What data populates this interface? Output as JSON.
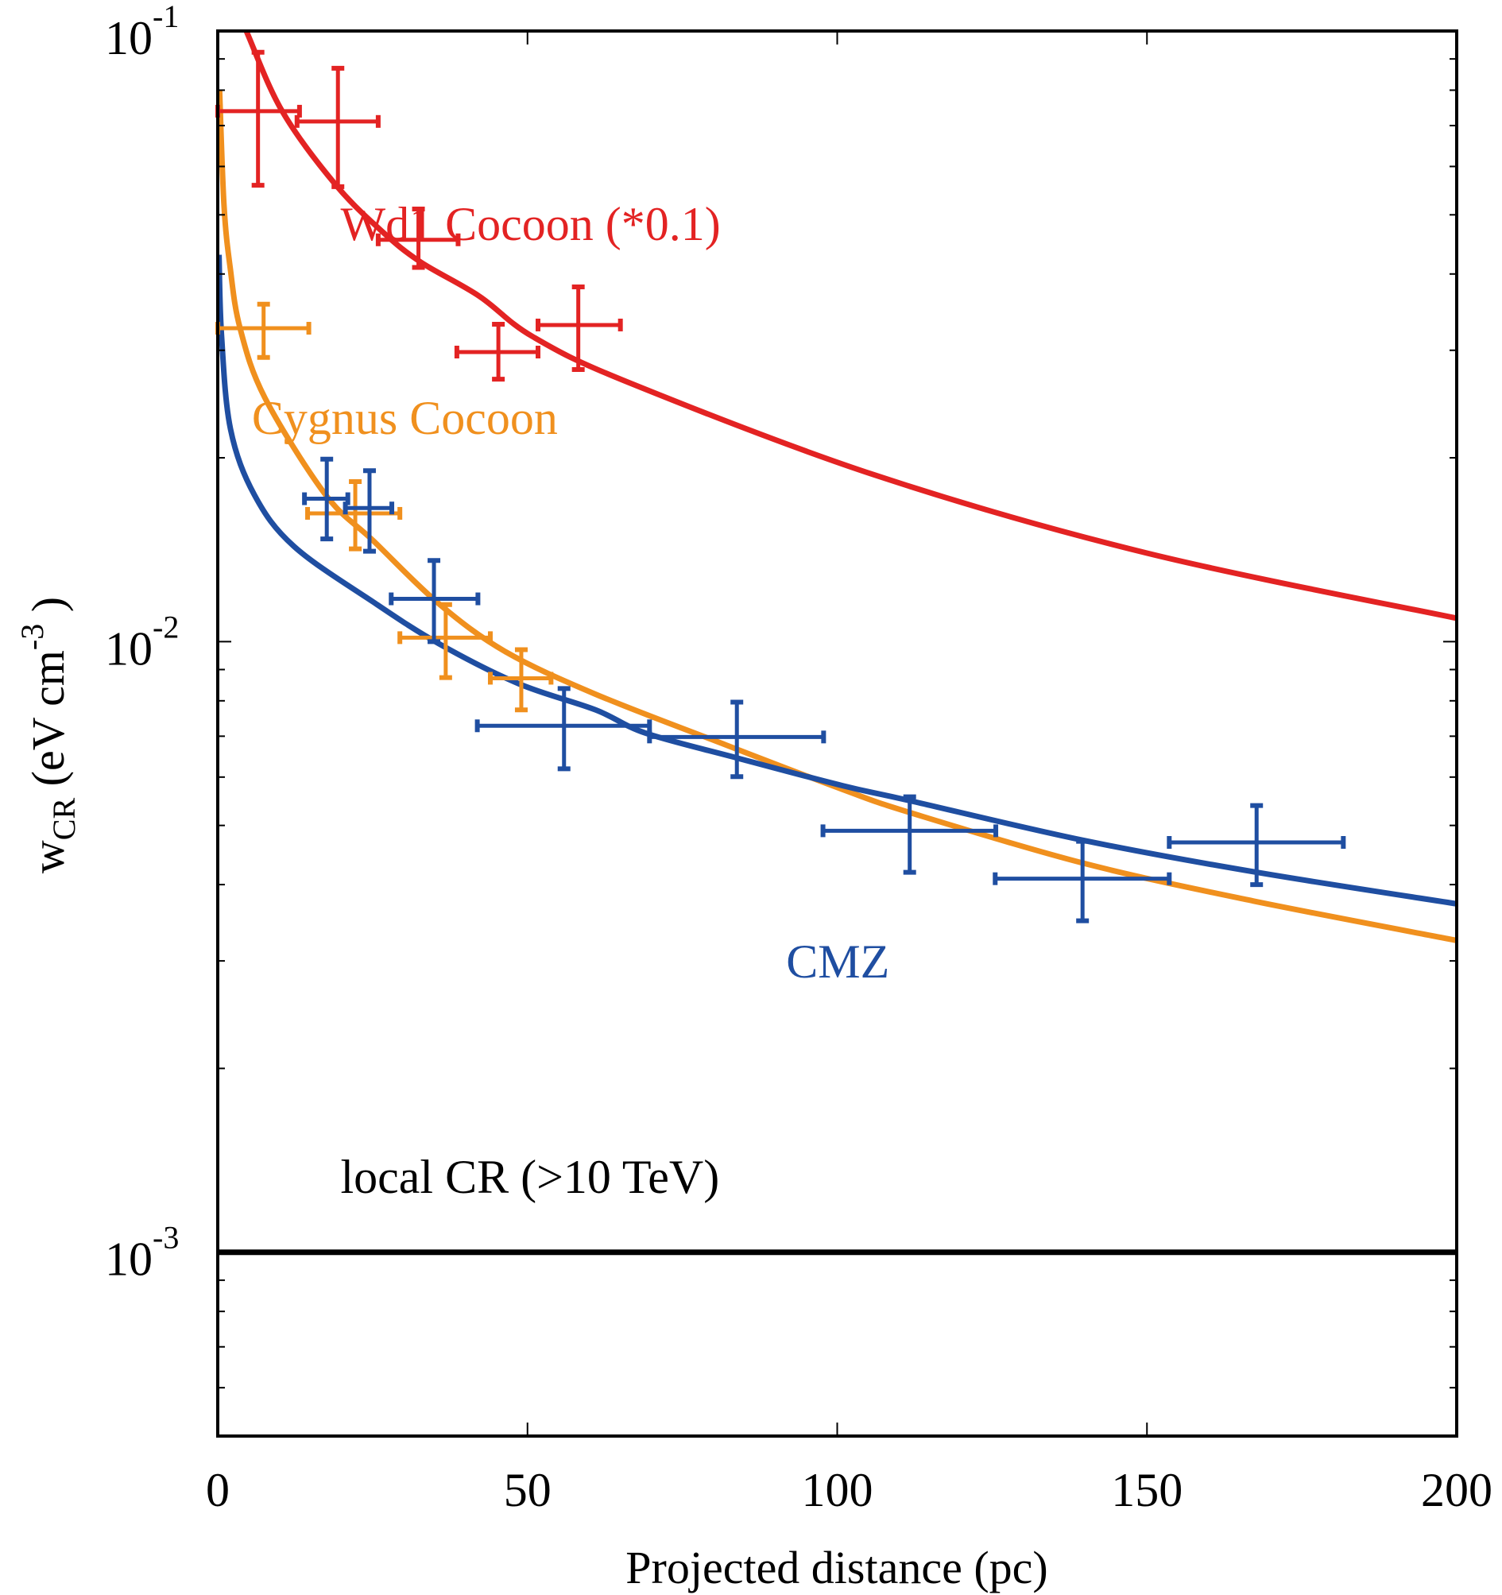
{
  "chart_data": {
    "type": "scatter",
    "title": "",
    "xlabel": "Projected distance (pc)",
    "ylabel": {
      "main": "w",
      "sub": "CR",
      "unit_open": " (eV cm",
      "unit_sup": "-3",
      "unit_close": " )"
    },
    "xlim": [
      0,
      200
    ],
    "ylim": [
      0.0005,
      0.1
    ],
    "yscale": "log",
    "grid": false,
    "legend": "none (inline labels)",
    "x_ticks": [
      {
        "value": 0,
        "label": "0"
      },
      {
        "value": 50,
        "label": "50"
      },
      {
        "value": 100,
        "label": "100"
      },
      {
        "value": 150,
        "label": "150"
      },
      {
        "value": 200,
        "label": "200"
      }
    ],
    "y_ticks": [
      {
        "value": 0.1,
        "base": "10",
        "exp": "-1"
      },
      {
        "value": 0.01,
        "base": "10",
        "exp": "-2"
      },
      {
        "value": 0.001,
        "base": "10",
        "exp": "-3"
      }
    ],
    "series": [
      {
        "name": "Wd1 Cocoon (*0.1)",
        "color": "#e32323",
        "points": [
          {
            "x": 6.5,
            "y": 0.0739,
            "xlo": 0.0,
            "xhi": 13.2,
            "ylo": 0.0559,
            "yhi": 0.0923
          },
          {
            "x": 19.4,
            "y": 0.0711,
            "xlo": 12.8,
            "xhi": 25.9,
            "ylo": 0.0556,
            "yhi": 0.0869
          },
          {
            "x": 32.4,
            "y": 0.0455,
            "xlo": 25.9,
            "xhi": 38.8,
            "ylo": 0.041,
            "yhi": 0.0511
          },
          {
            "x": 45.3,
            "y": 0.0298,
            "xlo": 38.6,
            "xhi": 51.7,
            "ylo": 0.0269,
            "yhi": 0.0331
          },
          {
            "x": 58.2,
            "y": 0.033,
            "xlo": 51.7,
            "xhi": 65.0,
            "ylo": 0.0279,
            "yhi": 0.0381
          }
        ],
        "model_curve": [
          [
            4.6,
            0.1
          ],
          [
            10.4,
            0.0739
          ],
          [
            19.1,
            0.0559
          ],
          [
            26.8,
            0.0467
          ],
          [
            32.8,
            0.0418
          ],
          [
            42.2,
            0.0368
          ],
          [
            50.8,
            0.0316
          ],
          [
            66.2,
            0.0266
          ],
          [
            106,
            0.01875
          ],
          [
            150,
            0.01396
          ],
          [
            200,
            0.01092
          ]
        ]
      },
      {
        "name": "Cygnus Cocoon",
        "color": "#f0901e",
        "points": [
          {
            "x": 7.4,
            "y": 0.0326,
            "xlo": 0.0,
            "xhi": 14.7,
            "ylo": 0.0292,
            "yhi": 0.0357
          },
          {
            "x": 22.2,
            "y": 0.01622,
            "xlo": 14.5,
            "xhi": 29.4,
            "ylo": 0.01419,
            "yhi": 0.01828
          },
          {
            "x": 36.8,
            "y": 0.01015,
            "xlo": 29.4,
            "xhi": 44.0,
            "ylo": 0.00873,
            "yhi": 0.0115
          },
          {
            "x": 49.0,
            "y": 0.00871,
            "xlo": 44.0,
            "xhi": 53.8,
            "ylo": 0.00773,
            "yhi": 0.0097
          }
        ],
        "model_curve": [
          [
            0.3,
            0.08
          ],
          [
            1.0,
            0.052
          ],
          [
            2.0,
            0.041
          ],
          [
            3.6,
            0.0326
          ],
          [
            7.6,
            0.0251
          ],
          [
            17.4,
            0.0174
          ],
          [
            25.1,
            0.01463
          ],
          [
            35.8,
            0.01151
          ],
          [
            46.5,
            0.00962
          ],
          [
            61.0,
            0.0082
          ],
          [
            81.9,
            0.00678
          ],
          [
            100.8,
            0.00573
          ],
          [
            111.7,
            0.00525
          ],
          [
            139.6,
            0.00434
          ],
          [
            167.2,
            0.00376
          ],
          [
            200,
            0.00324
          ]
        ]
      },
      {
        "name": "CMZ",
        "color": "#1f4ea1",
        "points": [
          {
            "x": 17.6,
            "y": 0.01714,
            "xlo": 14.0,
            "xhi": 21.0,
            "ylo": 0.01473,
            "yhi": 0.0199
          },
          {
            "x": 24.5,
            "y": 0.01655,
            "xlo": 20.6,
            "xhi": 28.1,
            "ylo": 0.01406,
            "yhi": 0.01905
          },
          {
            "x": 34.9,
            "y": 0.01175,
            "xlo": 28.0,
            "xhi": 42.0,
            "ylo": 0.01,
            "yhi": 0.01358
          },
          {
            "x": 55.9,
            "y": 0.00728,
            "xlo": 41.9,
            "xhi": 69.7,
            "ylo": 0.00619,
            "yhi": 0.00838
          },
          {
            "x": 83.8,
            "y": 0.00698,
            "xlo": 69.7,
            "xhi": 97.8,
            "ylo": 0.00601,
            "yhi": 0.00796
          },
          {
            "x": 111.7,
            "y": 0.0049,
            "xlo": 97.7,
            "xhi": 125.6,
            "ylo": 0.00419,
            "yhi": 0.00557
          },
          {
            "x": 139.6,
            "y": 0.00409,
            "xlo": 125.5,
            "xhi": 153.6,
            "ylo": 0.00349,
            "yhi": 0.00471
          },
          {
            "x": 167.7,
            "y": 0.00469,
            "xlo": 153.6,
            "xhi": 181.7,
            "ylo": 0.004,
            "yhi": 0.00539
          }
        ],
        "model_curve": [
          [
            0.2,
            0.043
          ],
          [
            0.6,
            0.0318
          ],
          [
            2.05,
            0.0223
          ],
          [
            5.9,
            0.0174
          ],
          [
            12.3,
            0.01432
          ],
          [
            25.1,
            0.01161
          ],
          [
            35.8,
            0.00991
          ],
          [
            48.6,
            0.00853
          ],
          [
            61.0,
            0.00773
          ],
          [
            69.1,
            0.00708
          ],
          [
            83.8,
            0.00645
          ],
          [
            100.8,
            0.00581
          ],
          [
            111.7,
            0.00549
          ],
          [
            139.6,
            0.00473
          ],
          [
            167.7,
            0.00419
          ],
          [
            200,
            0.00372
          ]
        ]
      }
    ],
    "reference_line": {
      "name": "local CR (>10 TeV)",
      "y": 0.001,
      "color": "#000000"
    },
    "annotations": [
      {
        "id": "wd1",
        "text": "Wd1 Cocoon (*0.1)",
        "color": "#e32323",
        "x": 50.5,
        "y": 0.0455
      },
      {
        "id": "cygnus",
        "text": "Cygnus Cocoon",
        "color": "#f0901e",
        "x": 30.2,
        "y": 0.0219
      },
      {
        "id": "cmz",
        "text": "CMZ",
        "color": "#1f4ea1",
        "x": 100.1,
        "y": 0.00282
      },
      {
        "id": "local",
        "text": "local CR (>10 TeV)",
        "color": "#000000",
        "x": 50.4,
        "y": 0.00125
      }
    ]
  }
}
